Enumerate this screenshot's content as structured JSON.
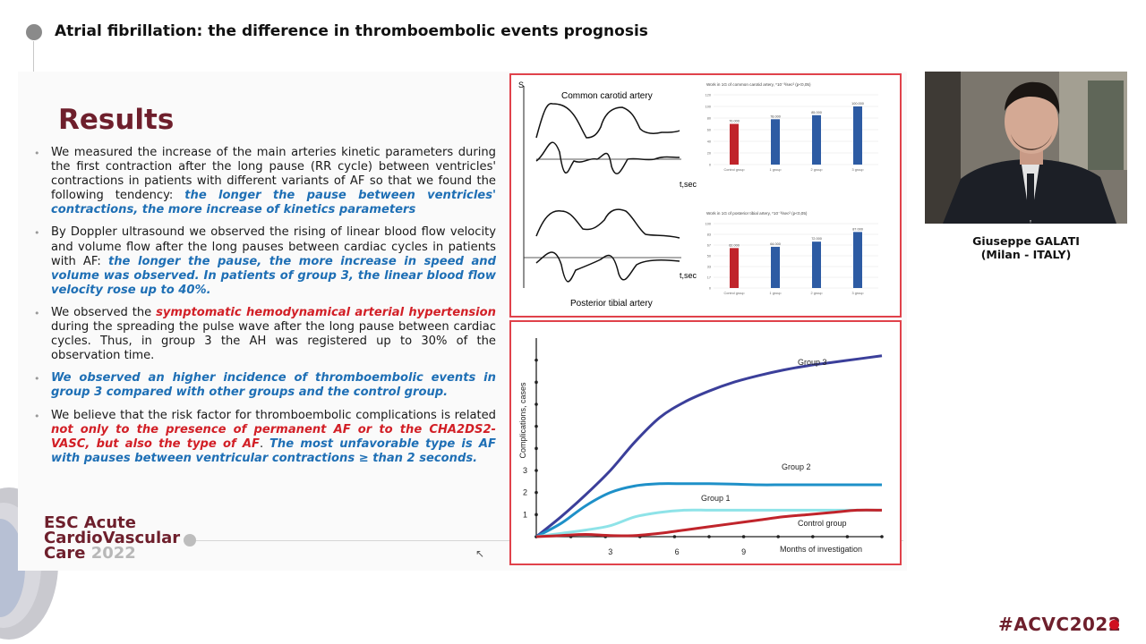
{
  "header": {
    "title": "Atrial fibrillation: the difference in thromboembolic events prognosis"
  },
  "slide": {
    "title": "Results",
    "bullets": [
      {
        "parts": [
          {
            "text": "We measured the increase of the main arteries kinetic parameters during the first contraction after the long pause (RR cycle) between ventricles' contractions in patients with different variants of AF so that we found the following tendency: ",
            "style": "normal"
          },
          {
            "text": "the longer the pause between ventricles' contractions, the more increase of kinetics parameters",
            "style": "blue"
          }
        ]
      },
      {
        "parts": [
          {
            "text": "By Doppler ultrasound we observed the rising of linear blood flow velocity and volume flow after the long pauses between cardiac cycles in patients with AF: ",
            "style": "normal"
          },
          {
            "text": "the longer the pause, the more increase in speed and volume was observed. In patients of group 3, the linear blood flow velocity rose up to 40%.",
            "style": "blue"
          }
        ]
      },
      {
        "parts": [
          {
            "text": "We observed the ",
            "style": "normal"
          },
          {
            "text": "symptomatic hemodynamical arterial hypertension",
            "style": "red"
          },
          {
            "text": " during the spreading the pulse wave after the long pause between cardiac cycles. Thus, in group 3 the AH was registered up to 30% of the observation time.",
            "style": "normal"
          }
        ]
      },
      {
        "parts": [
          {
            "text": "We observed an higher incidence of thromboembolic events in group 3 compared with other groups and the control group.",
            "style": "blue"
          }
        ]
      },
      {
        "parts": [
          {
            "text": "We believe that the risk factor for thromboembolic complications is related ",
            "style": "normal"
          },
          {
            "text": "not only to the presence of permanent AF or to the CHA2DS2-VASC, but also the type of AF",
            "style": "red"
          },
          {
            "text": ". ",
            "style": "normal"
          },
          {
            "text": "The most unfavorable type is AF with pauses between ventricular contractions ≥ than 2 seconds.",
            "style": "blue"
          }
        ]
      }
    ],
    "logo": {
      "line1": "ESC Acute",
      "line2": "CardioVascular",
      "line3": "Care",
      "year": "2022"
    }
  },
  "figure_top": {
    "waveform_labels": {
      "top": "Common carotid artery",
      "bottom": "Posterior tibial artery",
      "axis": "t,sec",
      "s": "S"
    },
    "chart_data": [
      {
        "type": "bar",
        "title": "Work in 1G of common carotid artery, *10⁻³/sec² (p<0,05)",
        "categories": [
          "Control group",
          "1 group",
          "2 group",
          "3 group"
        ],
        "values": [
          70.0,
          78.0,
          85.0,
          100.0
        ],
        "ylim": [
          0,
          120
        ],
        "colors": [
          "#c0242b",
          "#2d5ba3",
          "#2d5ba3",
          "#2d5ba3"
        ]
      },
      {
        "type": "bar",
        "title": "Work in 1G of posterior tibial artery, *10⁻³/sec² (p<0,05)",
        "categories": [
          "Control group",
          "1 group",
          "2 group",
          "3 group"
        ],
        "values": [
          62.0,
          64.0,
          72.0,
          87.0
        ],
        "ylim": [
          0,
          100
        ],
        "colors": [
          "#c0242b",
          "#2d5ba3",
          "#2d5ba3",
          "#2d5ba3"
        ]
      }
    ]
  },
  "figure_bottom": {
    "chart_data": {
      "type": "line",
      "ylabel": "Complications, cases",
      "xlabel": "Months of investigation",
      "x_ticks": [
        3,
        6,
        9
      ],
      "y_ticks": [
        1,
        2,
        3
      ],
      "series": [
        {
          "name": "Group 3",
          "color": "#3b3f9a",
          "x": [
            0,
            1,
            2,
            3,
            4,
            5,
            6,
            7,
            8,
            9,
            10,
            11,
            12,
            13,
            14
          ],
          "y": [
            0,
            0.9,
            1.9,
            3.0,
            4.3,
            5.4,
            6.1,
            6.6,
            7.0,
            7.3,
            7.55,
            7.75,
            7.9,
            8.05,
            8.2
          ]
        },
        {
          "name": "Group 2",
          "color": "#1e90c8",
          "x": [
            0,
            1,
            2,
            3,
            4,
            5,
            6,
            7,
            8,
            9,
            10,
            11,
            12,
            13,
            14
          ],
          "y": [
            0,
            0.6,
            1.4,
            2.0,
            2.3,
            2.4,
            2.4,
            2.4,
            2.38,
            2.35,
            2.35,
            2.35,
            2.35,
            2.35,
            2.35
          ]
        },
        {
          "name": "Group 1",
          "color": "#8ee3e8",
          "x": [
            0,
            1,
            2,
            3,
            4,
            5,
            6,
            7,
            8,
            9,
            10,
            11,
            12,
            13,
            14
          ],
          "y": [
            0,
            0.15,
            0.3,
            0.5,
            0.9,
            1.1,
            1.2,
            1.2,
            1.2,
            1.2,
            1.2,
            1.2,
            1.2,
            1.2,
            1.2
          ]
        },
        {
          "name": "Control group",
          "color": "#c0242b",
          "x": [
            0,
            1,
            2,
            3,
            4,
            5,
            6,
            7,
            8,
            9,
            10,
            11,
            12,
            13,
            14
          ],
          "y": [
            0,
            0.05,
            0.1,
            0.05,
            0.05,
            0.15,
            0.3,
            0.45,
            0.6,
            0.75,
            0.9,
            1.0,
            1.1,
            1.2,
            1.2
          ]
        }
      ]
    }
  },
  "speaker": {
    "name": "Giuseppe GALATI",
    "location": "(Milan - ITALY)"
  },
  "hashtag": "#ACVC2022"
}
